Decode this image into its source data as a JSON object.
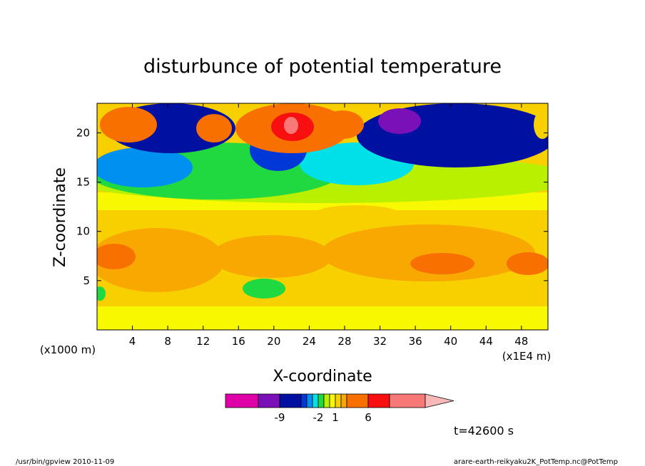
{
  "chart_data": {
    "type": "heatmap",
    "title": "disturbunce of potential temperature",
    "xlabel": "X-coordinate",
    "ylabel": "Z-coordinate",
    "x_unit_label": "(x1E4 m)",
    "z_unit_label": "(x1000 m)",
    "xlim": [
      0,
      51
    ],
    "ylim": [
      0,
      23
    ],
    "x_ticks": [
      "4",
      "8",
      "12",
      "16",
      "20",
      "24",
      "28",
      "32",
      "36",
      "40",
      "44",
      "48"
    ],
    "y_ticks": [
      "5",
      "10",
      "15",
      "20"
    ],
    "colorbar": {
      "colors": [
        "#e000a8",
        "#7a10b8",
        "#0010a0",
        "#0038d8",
        "#0090f0",
        "#00e0e8",
        "#20d840",
        "#b8f000",
        "#f8f800",
        "#f8d000",
        "#f8a800",
        "#f87000",
        "#f81010",
        "#f87878",
        "#f8b8b8"
      ],
      "tick_labels": [
        "-9",
        "-2",
        "1",
        "6"
      ]
    },
    "annotation": "t=42600 s",
    "footer_left": "/usr/bin/gpview   2010-11-09",
    "footer_right": "arare-earth-reikyaku2K_PotTemp.nc@PotTemp"
  }
}
